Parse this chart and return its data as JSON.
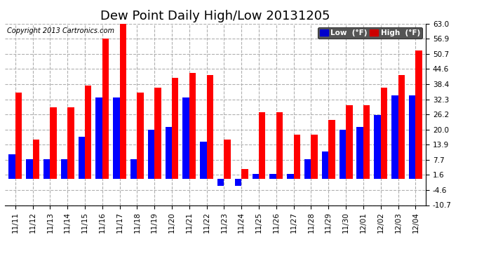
{
  "title": "Dew Point Daily High/Low 20131205",
  "copyright": "Copyright 2013 Cartronics.com",
  "legend_low_label": "Low  (°F)",
  "legend_high_label": "High  (°F)",
  "x_labels": [
    "11/11",
    "11/12",
    "11/13",
    "11/14",
    "11/15",
    "11/16",
    "11/17",
    "11/18",
    "11/19",
    "11/20",
    "11/21",
    "11/22",
    "11/23",
    "11/24",
    "11/25",
    "11/26",
    "11/27",
    "11/28",
    "11/29",
    "11/30",
    "12/01",
    "12/02",
    "12/03",
    "12/04"
  ],
  "low_values": [
    10,
    8,
    8,
    8,
    17,
    33,
    33,
    8,
    20,
    21,
    33,
    15,
    -3,
    -3,
    2,
    2,
    2,
    8,
    11,
    20,
    21,
    26,
    34,
    34
  ],
  "high_values": [
    35,
    16,
    29,
    29,
    38,
    57,
    63,
    35,
    37,
    41,
    43,
    42,
    16,
    4,
    27,
    27,
    18,
    18,
    24,
    30,
    30,
    37,
    42,
    52
  ],
  "ylim_min": -10.7,
  "ylim_max": 63.0,
  "yticks": [
    -10.7,
    -4.6,
    1.6,
    7.7,
    13.9,
    20.0,
    26.2,
    32.3,
    38.4,
    44.6,
    50.7,
    56.9,
    63.0
  ],
  "bar_width": 0.38,
  "low_color": "#0000ff",
  "high_color": "#ff0000",
  "bg_color": "#ffffff",
  "grid_color": "#b0b0b0",
  "title_fontsize": 13,
  "copyright_fontsize": 7,
  "tick_fontsize": 7.5,
  "legend_low_bg": "#0000cc",
  "legend_high_bg": "#cc0000"
}
